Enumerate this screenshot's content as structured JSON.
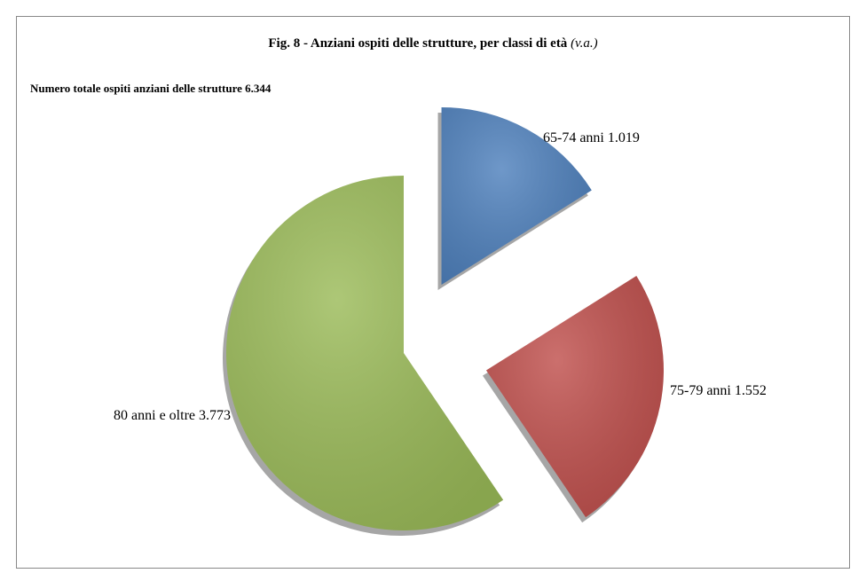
{
  "chart_data": {
    "type": "pie",
    "title": "Fig. 8 - Anziani ospiti delle strutture, per classi di età",
    "title_unit": "(v.a.)",
    "subtitle": "Numero totale ospiti anziani delle strutture 6.344",
    "categories": [
      "65-74 anni",
      "75-79 anni",
      "80 anni e oltre"
    ],
    "values": [
      1019,
      1552,
      3773
    ],
    "value_labels": [
      "1.019",
      "1.552",
      "3.773"
    ],
    "colors": [
      "#4f81bd",
      "#c0504d",
      "#9bbb59"
    ]
  }
}
